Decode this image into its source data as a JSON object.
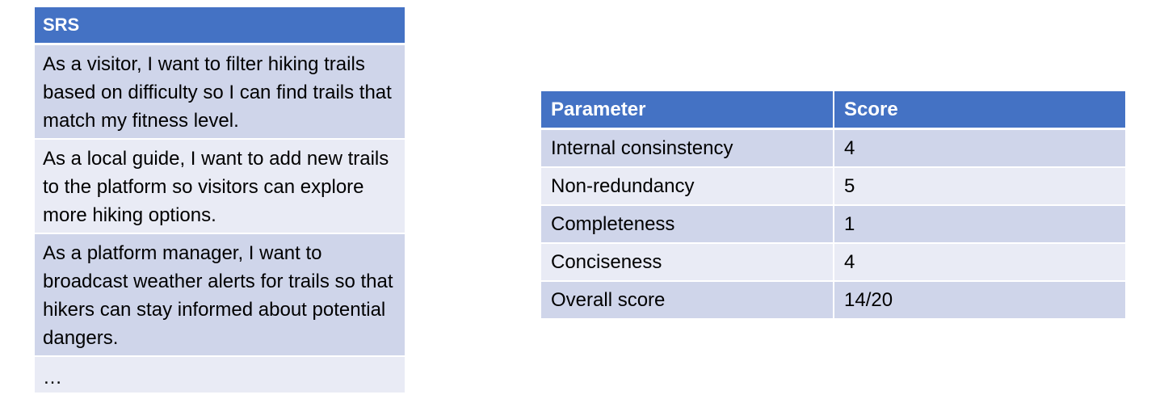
{
  "srs": {
    "header": "SRS",
    "stories": [
      "As a visitor, I want to filter hiking trails based on difficulty so I can find trails that match my fitness level.",
      "As a local guide, I want to add new trails to the platform so visitors can explore more hiking options.",
      "As a platform manager, I want to broadcast weather alerts for trails so that hikers can stay informed about potential dangers.",
      "…"
    ]
  },
  "scores": {
    "headers": [
      "Parameter",
      "Score"
    ],
    "rows": [
      {
        "parameter": "Internal consinstency",
        "score": "4"
      },
      {
        "parameter": "Non-redundancy",
        "score": "5"
      },
      {
        "parameter": "Completeness",
        "score": "1"
      },
      {
        "parameter": "Conciseness",
        "score": "4"
      },
      {
        "parameter": "Overall score",
        "score": "14/20"
      }
    ]
  },
  "colors": {
    "header_bg": "#4472c4",
    "row_dark": "#cfd5ea",
    "row_light": "#e9ebf5"
  }
}
